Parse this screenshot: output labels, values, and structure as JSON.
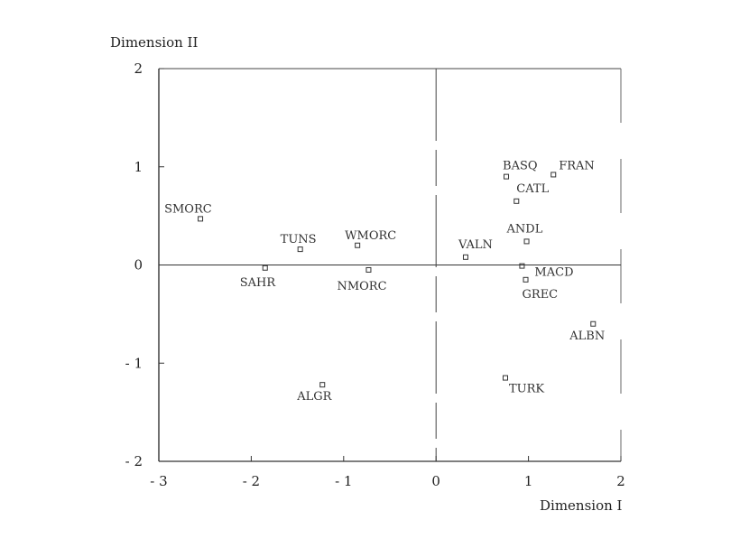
{
  "chart_data": {
    "type": "scatter",
    "title": "",
    "xlabel": "Dimension I",
    "ylabel": "Dimension II",
    "xlim": [
      -3,
      2
    ],
    "ylim": [
      -2,
      2
    ],
    "x_ticks": [
      -3,
      -2,
      -1,
      0,
      1,
      2
    ],
    "y_ticks": [
      -2,
      -1,
      0,
      1,
      2
    ],
    "x_tick_labels": [
      "- 3",
      "- 2",
      "- 1",
      "0",
      "1",
      "2"
    ],
    "y_tick_labels": [
      "- 2",
      "- 1",
      "0",
      "1",
      "2"
    ],
    "grid": false,
    "reference_lines": {
      "x0": true,
      "y0": true
    },
    "points": [
      {
        "label": "SMORC",
        "x": -2.55,
        "y": 0.47
      },
      {
        "label": "TUNS",
        "x": -1.47,
        "y": 0.16
      },
      {
        "label": "SAHR",
        "x": -1.85,
        "y": -0.03
      },
      {
        "label": "WMORC",
        "x": -0.85,
        "y": 0.2
      },
      {
        "label": "NMORC",
        "x": -0.73,
        "y": -0.05
      },
      {
        "label": "ALGR",
        "x": -1.23,
        "y": -1.22
      },
      {
        "label": "VALN",
        "x": 0.32,
        "y": 0.08
      },
      {
        "label": "BASQ",
        "x": 0.76,
        "y": 0.9
      },
      {
        "label": "FRAN",
        "x": 1.27,
        "y": 0.92
      },
      {
        "label": "CATL",
        "x": 0.87,
        "y": 0.65
      },
      {
        "label": "ANDL",
        "x": 0.98,
        "y": 0.24
      },
      {
        "label": "MACD",
        "x": 0.93,
        "y": -0.01
      },
      {
        "label": "GREC",
        "x": 0.97,
        "y": -0.15
      },
      {
        "label": "ALBN",
        "x": 1.7,
        "y": -0.6
      },
      {
        "label": "TURK",
        "x": 0.75,
        "y": -1.15
      }
    ]
  }
}
